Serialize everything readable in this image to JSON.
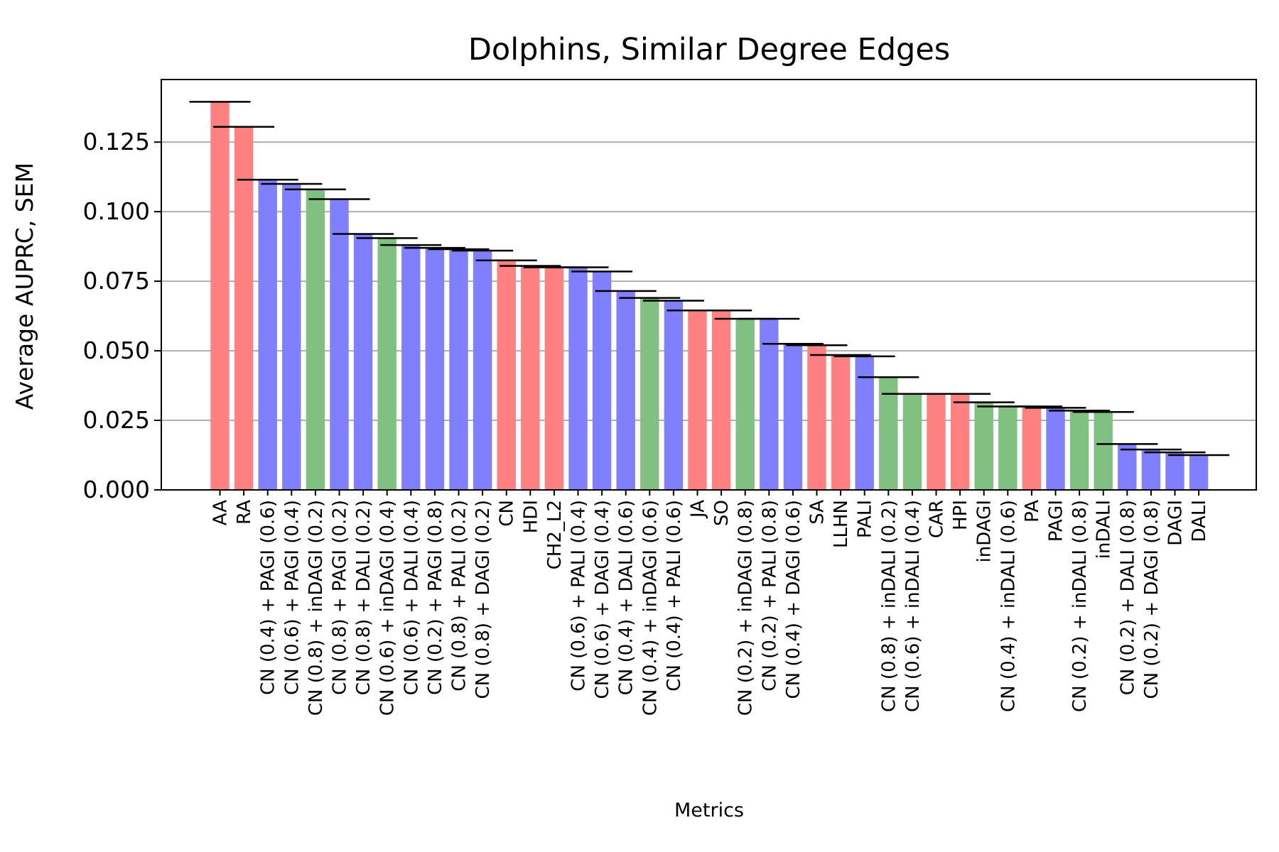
{
  "chart_data": {
    "type": "bar",
    "title": "Dolphins, Similar Degree Edges",
    "xlabel": "Metrics",
    "ylabel": "Average AUPRC, SEM",
    "ylim": [
      0,
      0.1475
    ],
    "yticks": [
      0.0,
      0.025,
      0.05,
      0.075,
      0.1,
      0.125
    ],
    "ytick_labels": [
      "0.000",
      "0.025",
      "0.050",
      "0.075",
      "0.100",
      "0.125"
    ],
    "grid": "y",
    "group_colors": {
      "red": "#ff8080",
      "blue": "#8080ff",
      "green": "#80c080"
    },
    "categories": [
      "AA",
      "RA",
      "CN (0.4) + PAGI (0.6)",
      "CN (0.6) + PAGI (0.4)",
      "CN (0.8) + inDAGI (0.2)",
      "CN (0.8) + PAGI (0.2)",
      "CN (0.8) + DALI (0.2)",
      "CN (0.6) + inDAGI (0.4)",
      "CN (0.6) + DALI (0.4)",
      "CN (0.2) + PAGI (0.8)",
      "CN (0.8) + PALI (0.2)",
      "CN (0.8) + DAGI (0.2)",
      "CN",
      "HDI",
      "CH2_L2",
      "CN (0.6) + PALI (0.4)",
      "CN (0.6) + DAGI (0.4)",
      "CN (0.4) + DALI (0.6)",
      "CN (0.4) + inDAGI (0.6)",
      "CN (0.4) + PALI (0.6)",
      "JA",
      "SO",
      "CN (0.2) + inDAGI (0.8)",
      "CN (0.2) + PALI (0.8)",
      "CN (0.4) + DAGI (0.6)",
      "SA",
      "LLHN",
      "PALI",
      "CN (0.8) + inDALI (0.2)",
      "CN (0.6) + inDALI (0.4)",
      "CAR",
      "HPI",
      "inDAGI",
      "CN (0.4) + inDALI (0.6)",
      "PA",
      "PAGI",
      "CN (0.2) + inDALI (0.8)",
      "inDALI",
      "CN (0.2) + DALI (0.8)",
      "CN (0.2) + DAGI (0.8)",
      "DAGI",
      "DALI"
    ],
    "values": [
      0.1395,
      0.1305,
      0.1115,
      0.11,
      0.108,
      0.1045,
      0.092,
      0.0905,
      0.088,
      0.087,
      0.0865,
      0.086,
      0.0825,
      0.0805,
      0.08,
      0.08,
      0.0785,
      0.0715,
      0.069,
      0.068,
      0.0645,
      0.0645,
      0.0615,
      0.0615,
      0.0525,
      0.052,
      0.0485,
      0.048,
      0.0405,
      0.0345,
      0.0345,
      0.0345,
      0.0315,
      0.03,
      0.03,
      0.0295,
      0.0285,
      0.028,
      0.0165,
      0.0145,
      0.0135,
      0.0125
    ],
    "color_groups": [
      "red",
      "red",
      "blue",
      "blue",
      "green",
      "blue",
      "blue",
      "green",
      "blue",
      "blue",
      "blue",
      "blue",
      "red",
      "red",
      "red",
      "blue",
      "blue",
      "blue",
      "green",
      "blue",
      "red",
      "red",
      "green",
      "blue",
      "blue",
      "red",
      "red",
      "blue",
      "green",
      "green",
      "red",
      "red",
      "green",
      "green",
      "red",
      "blue",
      "green",
      "green",
      "blue",
      "blue",
      "blue",
      "blue"
    ]
  }
}
